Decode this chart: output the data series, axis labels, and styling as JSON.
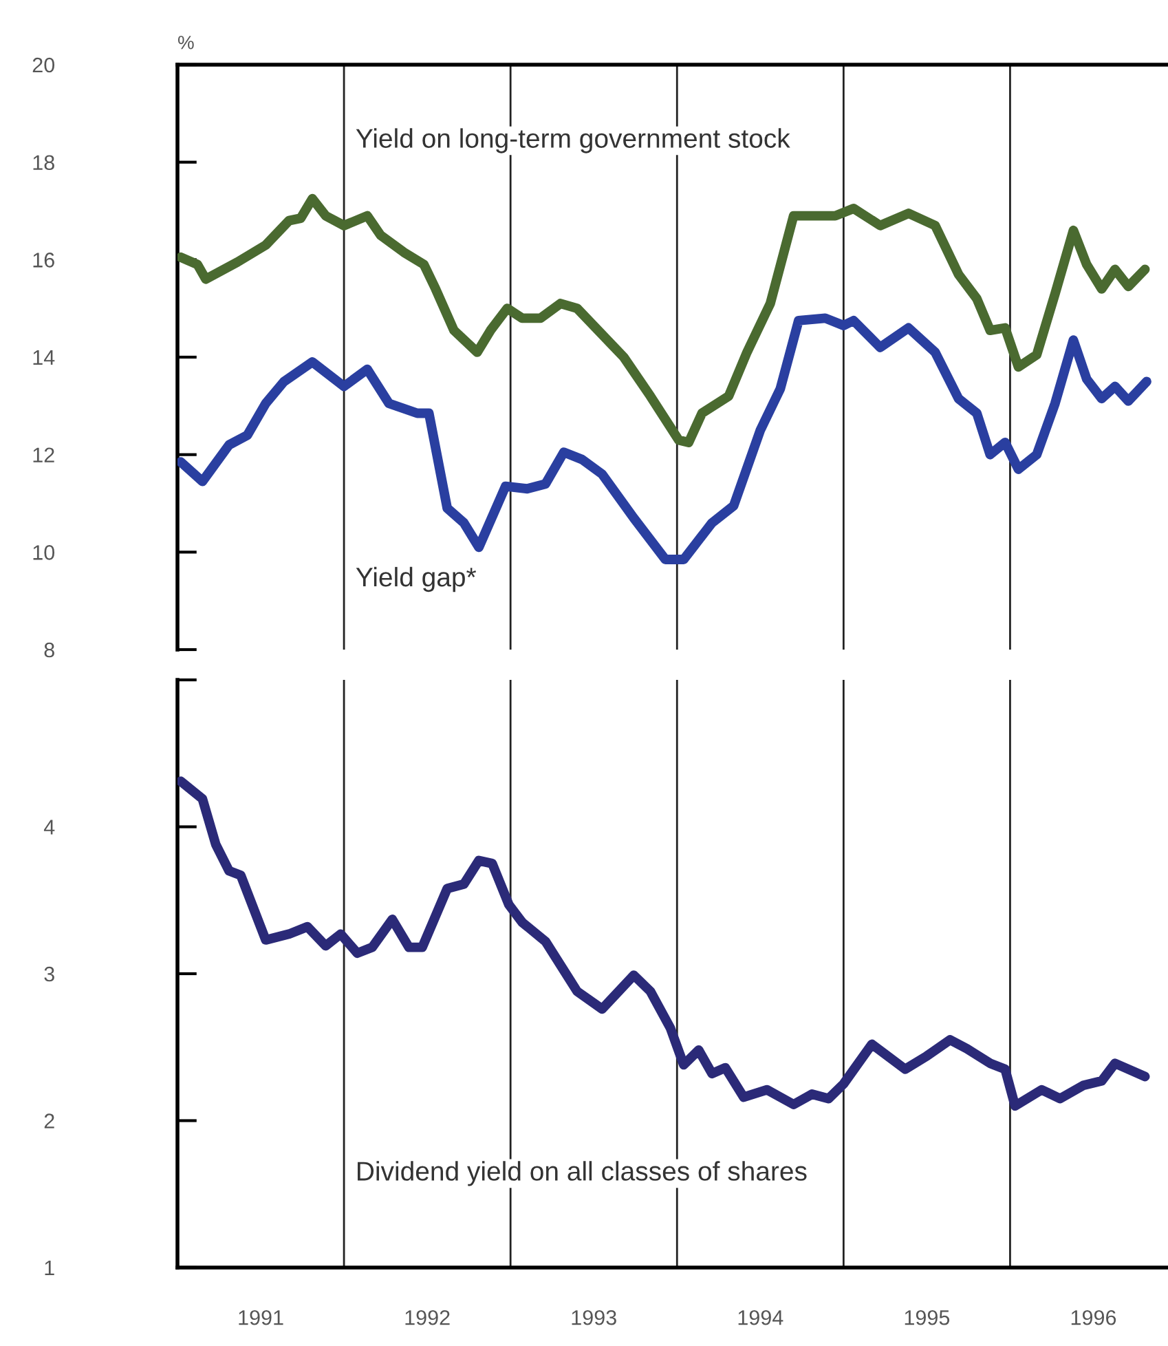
{
  "chart_data": [
    {
      "type": "line",
      "ylabel": "%",
      "xlim": [
        1991,
        1996.94
      ],
      "ylim": [
        8,
        20
      ],
      "yticks": [
        8,
        10,
        12,
        14,
        16,
        18,
        20
      ],
      "tick_labels": "y",
      "grid": false,
      "legend": false,
      "marker": "none",
      "line_style": "solid",
      "ref_lines": [
        {
          "axis": "x",
          "value": 1992,
          "color": "#222222"
        },
        {
          "axis": "x",
          "value": 1993,
          "color": "#222222"
        },
        {
          "axis": "x",
          "value": 1994,
          "color": "#222222"
        },
        {
          "axis": "x",
          "value": 1995,
          "color": "#222222"
        },
        {
          "axis": "x",
          "value": 1996,
          "color": "#222222"
        }
      ],
      "series": [
        {
          "name": "Yield on long-term government stock",
          "color": "#4a6a30",
          "x": [
            1991.02,
            1991.12,
            1991.17,
            1991.36,
            1991.53,
            1991.67,
            1991.74,
            1991.81,
            1991.89,
            1992.0,
            1992.14,
            1992.22,
            1992.36,
            1992.48,
            1992.55,
            1992.66,
            1992.8,
            1992.88,
            1992.98,
            1993.07,
            1993.18,
            1993.3,
            1993.4,
            1993.68,
            1993.84,
            1994.01,
            1994.07,
            1994.15,
            1994.31,
            1994.42,
            1994.56,
            1994.7,
            1994.95,
            1995.06,
            1995.22,
            1995.39,
            1995.55,
            1995.69,
            1995.8,
            1995.88,
            1995.97,
            1996.05,
            1996.16,
            1996.27,
            1996.38,
            1996.46,
            1996.55,
            1996.63,
            1996.71,
            1996.81
          ],
          "values": [
            16.05,
            15.9,
            15.6,
            15.95,
            16.3,
            16.8,
            16.85,
            17.25,
            16.9,
            16.7,
            16.9,
            16.5,
            16.15,
            15.9,
            15.4,
            14.55,
            14.1,
            14.55,
            15.0,
            14.8,
            14.8,
            15.1,
            15.0,
            14.0,
            13.2,
            12.3,
            12.25,
            12.85,
            13.2,
            14.1,
            15.1,
            16.9,
            16.9,
            17.05,
            16.7,
            16.95,
            16.7,
            15.7,
            15.2,
            14.55,
            14.6,
            13.8,
            14.05,
            15.3,
            16.6,
            15.9,
            15.4,
            15.8,
            15.45,
            15.8
          ]
        },
        {
          "name": "Yield gap*",
          "color": "#2a3fa0",
          "x": [
            1991.02,
            1991.15,
            1991.31,
            1991.42,
            1991.53,
            1991.64,
            1991.81,
            1992.0,
            1992.14,
            1992.27,
            1992.44,
            1992.51,
            1992.62,
            1992.72,
            1992.81,
            1992.97,
            1993.1,
            1993.21,
            1993.32,
            1993.43,
            1993.55,
            1993.74,
            1993.93,
            1994.04,
            1994.21,
            1994.34,
            1994.5,
            1994.62,
            1994.73,
            1994.89,
            1995.0,
            1995.06,
            1995.22,
            1995.39,
            1995.55,
            1995.69,
            1995.8,
            1995.88,
            1995.97,
            1996.05,
            1996.16,
            1996.27,
            1996.38,
            1996.46,
            1996.55,
            1996.63,
            1996.71,
            1996.82
          ],
          "values": [
            11.85,
            11.45,
            12.2,
            12.4,
            13.05,
            13.5,
            13.9,
            13.4,
            13.75,
            13.05,
            12.85,
            12.85,
            10.9,
            10.6,
            10.1,
            11.35,
            11.3,
            11.4,
            12.05,
            11.9,
            11.6,
            10.7,
            9.85,
            9.85,
            10.6,
            10.95,
            12.5,
            13.35,
            14.75,
            14.8,
            14.65,
            14.75,
            14.2,
            14.6,
            14.1,
            13.15,
            12.85,
            12.0,
            12.25,
            11.7,
            12.0,
            13.05,
            14.35,
            13.55,
            13.15,
            13.4,
            13.1,
            13.5
          ]
        }
      ]
    },
    {
      "type": "line",
      "xlim": [
        1991,
        1996.94
      ],
      "ylim": [
        1,
        5
      ],
      "yticks": [
        1,
        2,
        3,
        4,
        {
          "value": 5,
          "label": null
        }
      ],
      "xticks": [
        {
          "value": 1991.5,
          "label": "1991"
        },
        {
          "value": 1992.5,
          "label": "1992"
        },
        {
          "value": 1993.5,
          "label": "1993"
        },
        {
          "value": 1994.5,
          "label": "1994"
        },
        {
          "value": 1995.5,
          "label": "1995"
        },
        {
          "value": 1996.5,
          "label": "1996"
        }
      ],
      "grid": false,
      "legend": false,
      "marker": "none",
      "line_style": "solid",
      "ref_lines": [
        {
          "axis": "x",
          "value": 1992,
          "color": "#222222"
        },
        {
          "axis": "x",
          "value": 1993,
          "color": "#222222"
        },
        {
          "axis": "x",
          "value": 1994,
          "color": "#222222"
        },
        {
          "axis": "x",
          "value": 1995,
          "color": "#222222"
        },
        {
          "axis": "x",
          "value": 1996,
          "color": "#222222"
        }
      ],
      "series": [
        {
          "name": "Dividend yield on all classes of shares",
          "color": "#2b2a78",
          "x": [
            1991.02,
            1991.15,
            1991.23,
            1991.31,
            1991.38,
            1991.53,
            1991.67,
            1991.78,
            1991.89,
            1991.98,
            1992.08,
            1992.17,
            1992.29,
            1992.39,
            1992.47,
            1992.62,
            1992.72,
            1992.81,
            1992.89,
            1992.99,
            1993.07,
            1993.21,
            1993.35,
            1993.4,
            1993.55,
            1993.74,
            1993.84,
            1993.96,
            1994.04,
            1994.13,
            1994.21,
            1994.29,
            1994.4,
            1994.54,
            1994.7,
            1994.81,
            1994.91,
            1995.0,
            1995.17,
            1995.37,
            1995.5,
            1995.64,
            1995.74,
            1995.88,
            1995.97,
            1996.03,
            1996.19,
            1996.3,
            1996.44,
            1996.55,
            1996.63,
            1996.81
          ],
          "values": [
            4.31,
            4.19,
            3.88,
            3.7,
            3.67,
            3.23,
            3.27,
            3.32,
            3.19,
            3.27,
            3.14,
            3.18,
            3.37,
            3.18,
            3.18,
            3.58,
            3.61,
            3.77,
            3.75,
            3.47,
            3.35,
            3.22,
            2.97,
            2.88,
            2.76,
            2.99,
            2.88,
            2.63,
            2.38,
            2.48,
            2.32,
            2.36,
            2.16,
            2.21,
            2.11,
            2.18,
            2.15,
            2.25,
            2.52,
            2.35,
            2.44,
            2.55,
            2.49,
            2.39,
            2.35,
            2.1,
            2.21,
            2.15,
            2.24,
            2.27,
            2.39,
            2.3
          ]
        }
      ]
    }
  ]
}
